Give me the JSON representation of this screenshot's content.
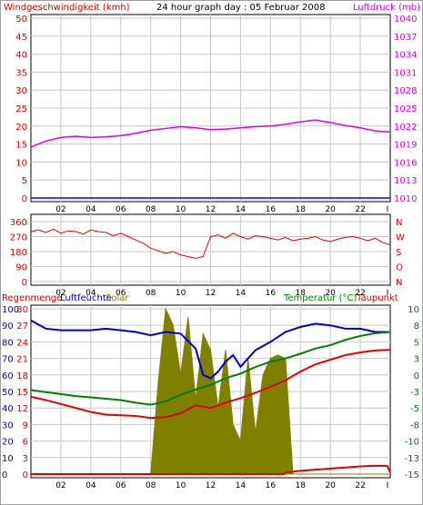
{
  "header": {
    "left_label": "Windgeschwindigkeit (kmh)",
    "title": "24 hour graph day : 05 Februar 2008",
    "right_label": "Luftdruck (mb)"
  },
  "colors": {
    "wind": "#0000ff",
    "pressure": "#e000e0",
    "direction": "#e00000",
    "humidity": "#0000c8",
    "solar": "#808000",
    "temperature": "#008000",
    "dewpoint": "#e00000",
    "rain": "#e00000",
    "red_axis": "#e00000",
    "green_axis": "#008000",
    "grid": "#c8c8c8"
  },
  "x_ticks": [
    "02",
    "04",
    "06",
    "08",
    "10",
    "12",
    "14",
    "16",
    "18",
    "20",
    "22"
  ],
  "x_end_tick": "I",
  "panel2": {
    "direction_labels": [
      "N",
      "W",
      "S",
      "O",
      "N"
    ]
  },
  "panel3": {
    "rain_label": "Regenmenge",
    "humidity_label": "Luftfeuchte",
    "solar_label": "Solar",
    "temperature_label": "Temperatur (°C)",
    "dewpoint_label": "Taupunkt"
  },
  "chart_data": [
    {
      "type": "line",
      "title": "24 hour graph day : 05 Februar 2008",
      "x_range": [
        0,
        24
      ],
      "y_left": {
        "label": "Windgeschwindigkeit (kmh)",
        "range": [
          0,
          50
        ],
        "ticks": [
          "0",
          "5",
          "10",
          "15",
          "20",
          "25",
          "30",
          "35",
          "40",
          "45",
          "50"
        ]
      },
      "y_right": {
        "label": "Luftdruck (mb)",
        "range": [
          1010,
          1040
        ],
        "ticks": [
          "1010",
          "1013",
          "1016",
          "1019",
          "1022",
          "1025",
          "1028",
          "1031",
          "1034",
          "1037",
          "1040"
        ]
      },
      "series": [
        {
          "name": "Windgeschwindigkeit (kmh)",
          "axis": "left",
          "x": [
            0,
            24
          ],
          "y": [
            0,
            0
          ]
        },
        {
          "name": "Luftdruck (mb)",
          "axis": "right",
          "x": [
            0,
            1,
            2,
            3,
            4,
            5,
            6,
            7,
            8,
            9,
            10,
            11,
            12,
            13,
            14,
            15,
            16,
            17,
            18,
            19,
            20,
            21,
            22,
            23,
            24
          ],
          "y": [
            1018.5,
            1019.5,
            1020.1,
            1020.3,
            1020.1,
            1020.2,
            1020.4,
            1020.8,
            1021.3,
            1021.6,
            1021.9,
            1021.7,
            1021.4,
            1021.5,
            1021.7,
            1021.9,
            1022.0,
            1022.3,
            1022.7,
            1023.0,
            1022.6,
            1022.1,
            1021.7,
            1021.2,
            1021.0
          ]
        }
      ],
      "grid": true
    },
    {
      "type": "line",
      "y_left": {
        "range": [
          0,
          360
        ],
        "ticks": [
          "0",
          "90",
          "180",
          "270",
          "360"
        ]
      },
      "y_right_labels": [
        "N",
        "W",
        "S",
        "O",
        "N"
      ],
      "series": [
        {
          "name": "Windrichtung",
          "x": [
            0,
            0.5,
            1,
            1.5,
            2,
            2.5,
            3,
            3.5,
            4,
            4.5,
            5,
            5.5,
            6,
            6.5,
            7,
            7.5,
            8,
            8.5,
            9,
            9.5,
            10,
            10.5,
            11,
            11.5,
            12,
            12.5,
            13,
            13.5,
            14,
            14.5,
            15,
            15.5,
            16,
            16.5,
            17,
            17.5,
            18,
            18.5,
            19,
            19.5,
            20,
            20.5,
            21,
            21.5,
            22,
            22.5,
            23,
            23.5,
            24
          ],
          "y": [
            300,
            310,
            295,
            315,
            290,
            305,
            300,
            285,
            310,
            300,
            295,
            275,
            290,
            270,
            250,
            230,
            200,
            185,
            170,
            180,
            160,
            150,
            140,
            150,
            270,
            280,
            260,
            290,
            270,
            255,
            275,
            270,
            260,
            250,
            265,
            245,
            255,
            260,
            270,
            250,
            240,
            255,
            265,
            270,
            260,
            245,
            260,
            235,
            220
          ]
        }
      ],
      "grid": true
    },
    {
      "type": "area",
      "y_axes": {
        "rain": {
          "label": "Regenmenge",
          "ticks": [
            "0",
            "3",
            "6",
            "9",
            "12",
            "15",
            "18",
            "21",
            "24",
            "27",
            "30"
          ]
        },
        "humidity": {
          "label": "Luftfeuchte",
          "range": [
            0,
            100
          ],
          "ticks": [
            "0",
            "10",
            "20",
            "30",
            "40",
            "50",
            "60",
            "70",
            "80",
            "90",
            "100"
          ]
        },
        "solar": {
          "label": "Solar"
        },
        "temperature": {
          "label": "Temperatur (°C)",
          "range": [
            -15,
            10
          ],
          "ticks": [
            "10",
            "8",
            "5",
            "3",
            "0",
            "-3",
            "-5",
            "-8",
            "-10",
            "-13",
            "-15"
          ]
        }
      },
      "series": [
        {
          "name": "Luftfeuchte",
          "axis": "humidity",
          "x": [
            0,
            1,
            2,
            3,
            4,
            5,
            6,
            7,
            8,
            9,
            10,
            11,
            11.5,
            12,
            12.5,
            13,
            13.5,
            14,
            14.5,
            15,
            16,
            17,
            18,
            19,
            20,
            21,
            22,
            23,
            24
          ],
          "y": [
            93,
            88,
            87,
            87,
            87,
            88,
            87,
            86,
            84,
            86,
            85,
            76,
            60,
            58,
            62,
            68,
            72,
            65,
            70,
            75,
            80,
            86,
            89,
            91,
            90,
            88,
            88,
            86,
            86
          ]
        },
        {
          "name": "Solar",
          "axis": "solar_scaled_0_100",
          "x": [
            0,
            8,
            8.5,
            9,
            9.5,
            10,
            10.5,
            11,
            11.5,
            12,
            12.5,
            13,
            13.5,
            14,
            14.5,
            15,
            15.5,
            16,
            16.5,
            17,
            17.5,
            24
          ],
          "y": [
            0,
            0,
            55,
            100,
            90,
            60,
            95,
            45,
            85,
            75,
            40,
            75,
            30,
            20,
            70,
            25,
            60,
            70,
            72,
            70,
            0,
            0
          ]
        },
        {
          "name": "Temperatur (°C)",
          "axis": "temperature",
          "x": [
            0,
            1,
            2,
            3,
            4,
            5,
            6,
            7,
            8,
            9,
            10,
            11,
            12,
            13,
            14,
            15,
            16,
            17,
            18,
            19,
            20,
            21,
            22,
            23,
            24
          ],
          "y": [
            -2.3,
            -2.6,
            -2.9,
            -3.2,
            -3.4,
            -3.6,
            -3.8,
            -4.2,
            -4.5,
            -4.0,
            -3.0,
            -2.2,
            -1.5,
            -0.5,
            0.2,
            1.2,
            2.0,
            2.5,
            3.2,
            4.0,
            4.5,
            5.3,
            5.9,
            6.3,
            6.5
          ]
        },
        {
          "name": "Taupunkt",
          "axis": "temperature",
          "x": [
            0,
            1,
            2,
            3,
            4,
            5,
            6,
            7,
            8,
            9,
            10,
            11,
            12,
            13,
            14,
            15,
            16,
            17,
            18,
            19,
            20,
            21,
            22,
            23,
            24
          ],
          "y": [
            -3.3,
            -3.8,
            -4.4,
            -5.0,
            -5.6,
            -6.0,
            -6.1,
            -6.2,
            -6.5,
            -6.4,
            -5.8,
            -4.6,
            -5.0,
            -4.2,
            -3.5,
            -2.7,
            -1.8,
            -0.8,
            0.5,
            1.6,
            2.3,
            3.0,
            3.4,
            3.7,
            3.8
          ]
        },
        {
          "name": "Regenmenge",
          "axis": "rain",
          "x": [
            0,
            16.9,
            17,
            18,
            19,
            20,
            21,
            22,
            23,
            23.8,
            24
          ],
          "y": [
            0,
            0,
            0.3,
            0.6,
            0.8,
            1.0,
            1.2,
            1.4,
            1.5,
            1.5,
            0.3
          ]
        }
      ],
      "grid": true
    }
  ]
}
